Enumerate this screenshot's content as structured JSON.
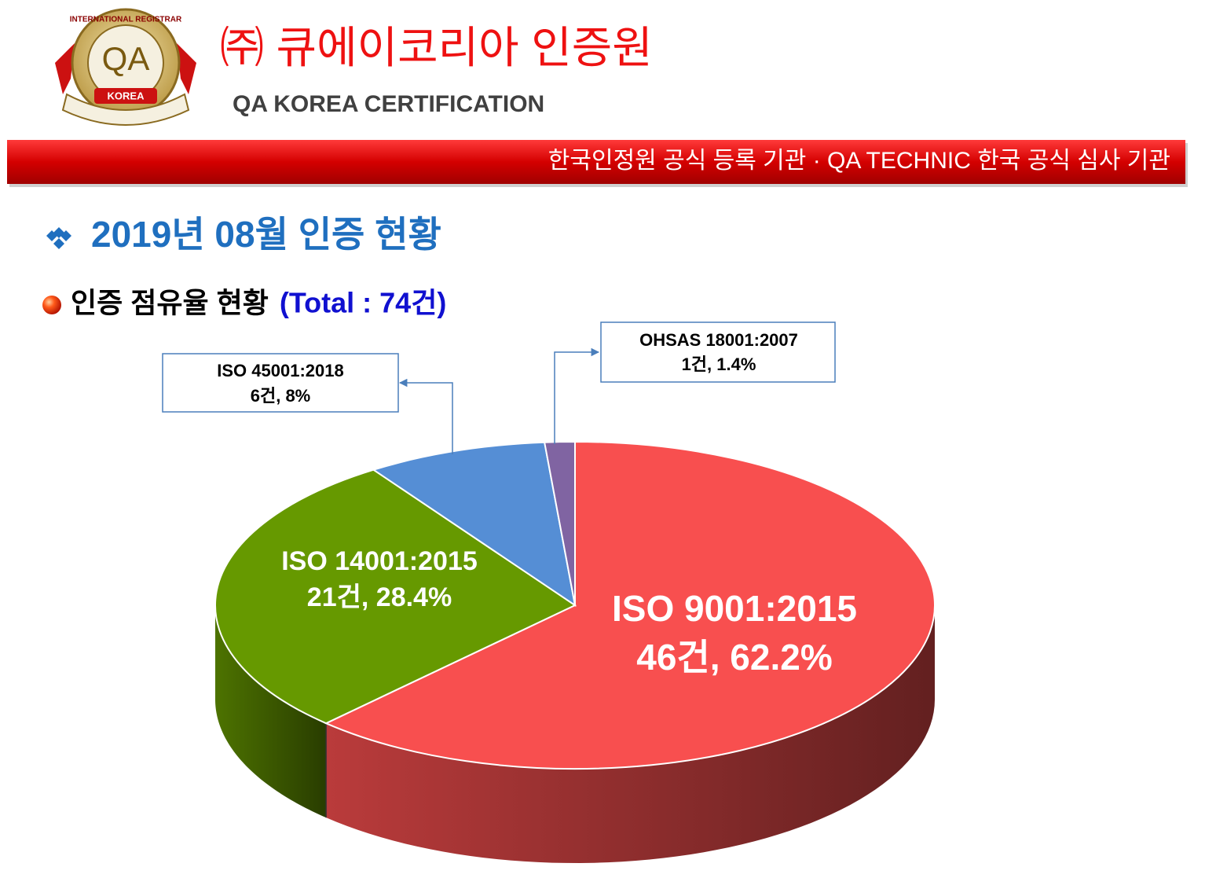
{
  "header": {
    "logo_ring": "INTERNATIONAL REGISTRAR",
    "logo_mark": "QA",
    "logo_country": "KOREA",
    "company": "㈜ 큐에이코리아 인증원",
    "company_en": "QA KOREA CERTIFICATION",
    "banner": "한국인정원 공식 등록 기관  ·  QA TECHNIC 한국 공식 심사 기관"
  },
  "section_title": "2019년 08월 인증 현황",
  "chart_data": {
    "type": "pie3d",
    "title": "인증 점유율 현황",
    "subtitle": "(Total : 74건)",
    "categories": [
      "ISO 9001:2015",
      "ISO 14001:2015",
      "ISO 45001:2018",
      "OHSAS 18001:2007"
    ],
    "values": [
      46,
      21,
      6,
      1
    ],
    "value_labels": [
      "46건, 62.2%",
      "21건, 28.4%",
      "6건, 8%",
      "1건, 1.4%"
    ],
    "colors": [
      "#f84f4f",
      "#669900",
      "#558ed5",
      "#8064a2"
    ]
  }
}
